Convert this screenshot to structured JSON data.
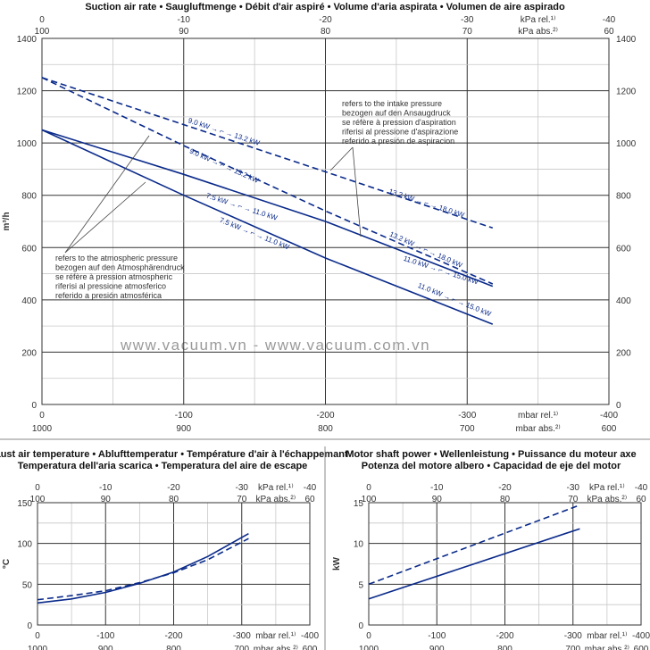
{
  "colors": {
    "series": "#0a2a8a",
    "grid_major": "#333333",
    "grid_minor": "#c8c8c8",
    "watermark": "#9a9a9a"
  },
  "watermark": "www.vacuum.vn - www.vacuum.com.vn",
  "chart_data": [
    {
      "type": "line",
      "title": "Suction air rate  •  Saugluftmenge  •  Débit d'air aspiré  •  Volume d'aria aspirata  •  Volumen de aire aspirado",
      "ylabel": "m³/h",
      "xlabel": "mbar rel.¹⁾",
      "xlabel2": "mbar abs.²⁾",
      "xlim": [
        0,
        -400
      ],
      "ylim": [
        0,
        1400
      ],
      "grid": true,
      "x_ticks": [
        0,
        -100,
        -200,
        -300,
        -400
      ],
      "x_ticks_abs": [
        1000,
        900,
        800,
        700,
        600
      ],
      "top_ticks": [
        0,
        -10,
        -20,
        -30,
        -40
      ],
      "top_ticks_abs": [
        100,
        90,
        80,
        70,
        60
      ],
      "top_label": "kPa rel.¹⁾",
      "top_label2": "kPa abs.²⁾",
      "y_ticks": [
        0,
        200,
        400,
        600,
        800,
        1000,
        1200,
        1400
      ],
      "series": [
        {
          "style": "dashed",
          "x": [
            0,
            -100,
            -200,
            -318
          ],
          "y": [
            1250,
            1070,
            890,
            675
          ],
          "labels": [
            "9.0 kW → ⌐ → 13.2 kW",
            "13.2 kW → ⌐ → 18.0 kW"
          ]
        },
        {
          "style": "dashed",
          "x": [
            0,
            -100,
            -200,
            -318
          ],
          "y": [
            1250,
            990,
            740,
            461
          ],
          "labels": [
            "9.0 kW → ⌐ → 13.2 kW",
            "13.2 kW → ⌐ → 18.0 kW"
          ]
        },
        {
          "style": "solid",
          "x": [
            0,
            -100,
            -200,
            -318
          ],
          "y": [
            1050,
            880,
            700,
            452
          ],
          "labels": [
            "7.5 kW → ⌐ → 11.0 kW",
            "11.0 kW → ⌐ → 15.0 kW"
          ]
        },
        {
          "style": "solid",
          "x": [
            0,
            -100,
            -200,
            -318
          ],
          "y": [
            1050,
            800,
            560,
            307
          ],
          "labels": [
            "7.5 kW → ⌐ → 11.0 kW",
            "11.0 kW → ⌐ → 15.0 kW"
          ]
        }
      ],
      "annotations": {
        "intake": [
          "refers to the intake pressure",
          "bezogen auf den Ansaugdruck",
          "se réfère à pression d'aspiration",
          "riferisi al pressione d'aspirazione",
          "referido a presión de aspiracion"
        ],
        "atmospheric": [
          "refers to the atmospheric pressure",
          "bezogen auf den Atmosphärendruck",
          "se réfère à pression atmospheric",
          "riferisi al pressione atmosferico",
          "referido a presión atmosférica"
        ]
      }
    },
    {
      "type": "line",
      "title": [
        "Exhaust air temperature  •  Ablufttemperatur  •  Température d'air à l'échappemant",
        "Temperatura dell'aria scarica  •  Temperatura del aire de escape"
      ],
      "ylabel": "°C",
      "xlim": [
        0,
        -400
      ],
      "ylim": [
        0,
        150
      ],
      "y_ticks": [
        0,
        50,
        100,
        150
      ],
      "series": [
        {
          "style": "solid",
          "x": [
            0,
            -50,
            -100,
            -150,
            -200,
            -250,
            -310
          ],
          "y": [
            27,
            32,
            40,
            51,
            65,
            84,
            112
          ]
        },
        {
          "style": "dashed",
          "x": [
            0,
            -50,
            -100,
            -150,
            -200,
            -250,
            -310
          ],
          "y": [
            31,
            36,
            42,
            52,
            64,
            80,
            106
          ]
        }
      ]
    },
    {
      "type": "line",
      "title": [
        "Motor shaft power  •  Wellenleistung  •  Puissance du moteur axe",
        "Potenza del motore albero  •  Capacidad de eje del motor"
      ],
      "ylabel": "kW",
      "xlim": [
        0,
        -400
      ],
      "ylim": [
        0,
        15
      ],
      "y_ticks": [
        0,
        5,
        10,
        15
      ],
      "series": [
        {
          "style": "solid",
          "x": [
            0,
            -310
          ],
          "y": [
            3.2,
            11.8
          ]
        },
        {
          "style": "dashed",
          "x": [
            0,
            -310
          ],
          "y": [
            5.0,
            14.7
          ]
        }
      ]
    }
  ]
}
